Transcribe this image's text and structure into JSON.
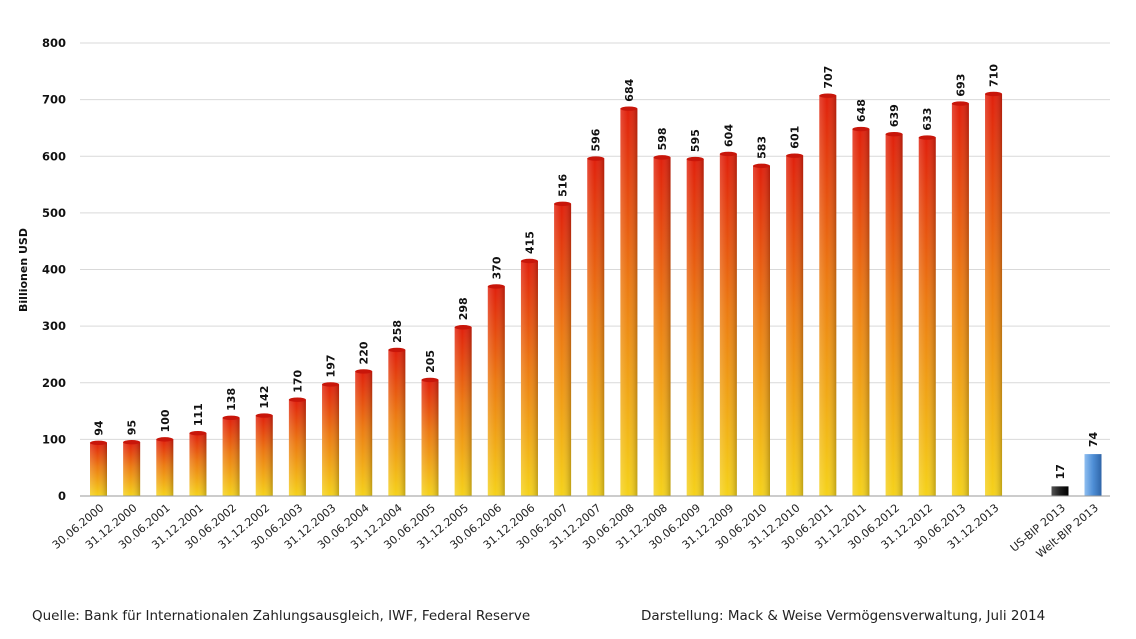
{
  "chart_data": {
    "type": "bar",
    "ylabel": "Billionen USD",
    "ylim": [
      0,
      800
    ],
    "yticks": [
      0,
      100,
      200,
      300,
      400,
      500,
      600,
      700,
      800
    ],
    "grid": true,
    "categories": [
      "30.06.2000",
      "31.12.2000",
      "30.06.2001",
      "31.12.2001",
      "30.06.2002",
      "31.12.2002",
      "30.06.2003",
      "31.12.2003",
      "30.06.2004",
      "31.12.2004",
      "30.06.2005",
      "31.12.2005",
      "30.06.2006",
      "31.12.2006",
      "30.06.2007",
      "31.12.2007",
      "30.06.2008",
      "31.12.2008",
      "30.06.2009",
      "31.12.2009",
      "30.06.2010",
      "31.12.2010",
      "30.06.2011",
      "31.12.2011",
      "30.06.2012",
      "31.12.2012",
      "30.06.2013",
      "31.12.2013"
    ],
    "values": [
      94,
      95,
      100,
      111,
      138,
      142,
      170,
      197,
      220,
      258,
      205,
      298,
      370,
      415,
      516,
      596,
      684,
      598,
      595,
      604,
      583,
      601,
      707,
      648,
      639,
      633,
      693,
      710
    ],
    "extra_bars": [
      {
        "label": "US-BIP 2013",
        "value": 17
      },
      {
        "label": "Welt-BIP 2013",
        "value": 74
      }
    ],
    "colors": {
      "bar_top": "#f5d21a",
      "bar_bottom": "#e62a0c",
      "us_bar": "#1e1e1e",
      "world_bar": "#4f8fd6",
      "grid": "#d9d9d9"
    }
  },
  "footer": {
    "source": "Quelle: Bank für Internationalen Zahlungsausgleich, IWF, Federal Reserve",
    "credit": "Darstellung: Mack & Weise Vermögensverwaltung, Juli 2014"
  }
}
